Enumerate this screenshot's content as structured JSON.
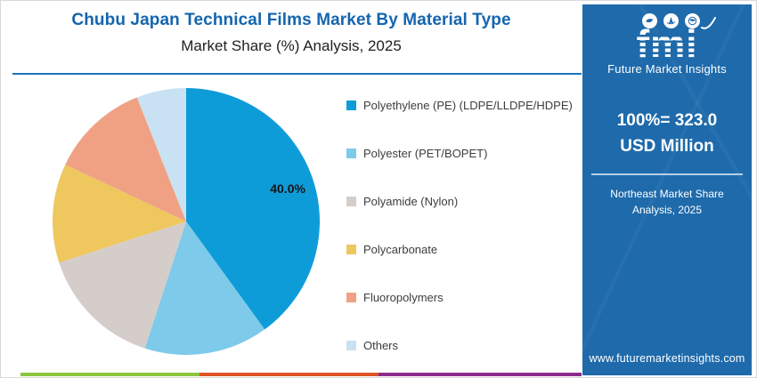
{
  "header": {
    "title": "Chubu Japan Technical Films Market By Material Type",
    "subtitle": "Market Share (%) Analysis, 2025"
  },
  "chart_data": {
    "type": "pie",
    "title": "Chubu Japan Technical Films Market By Material Type",
    "subtitle": "Market Share (%) Analysis, 2025",
    "categories": [
      "Polyethylene (PE) (LDPE/LLDPE/HDPE)",
      "Polyester (PET/BOPET)",
      "Polyamide (Nylon)",
      "Polycarbonate",
      "Fluoropolymers",
      "Others"
    ],
    "values": [
      40.0,
      15.0,
      15.0,
      12.0,
      12.0,
      6.0
    ],
    "colors": [
      "#0E9CD9",
      "#7ECAEB",
      "#D5CDC9",
      "#EEC75F",
      "#F0A184",
      "#C9E2F3"
    ],
    "slice_labels": {
      "0": "40.0%"
    },
    "slice_label_color": "#141414",
    "start_angle_deg": 0,
    "direction": "clockwise",
    "legend_position": "right",
    "total_note": "100%= 323.0 USD Million"
  },
  "sidebar": {
    "logo": {
      "brand": "fmi",
      "tagline": "Future Market Insights"
    },
    "headline": "100%= 323.0 USD Million",
    "region_note": "Northeast Market Share Analysis, 2025",
    "website": "www.futuremarketinsights.com",
    "background_color": "#1E6AAB"
  },
  "footer": {
    "stripe_colors": [
      "#8CC63E",
      "#DF5327",
      "#8E2A8E"
    ]
  }
}
